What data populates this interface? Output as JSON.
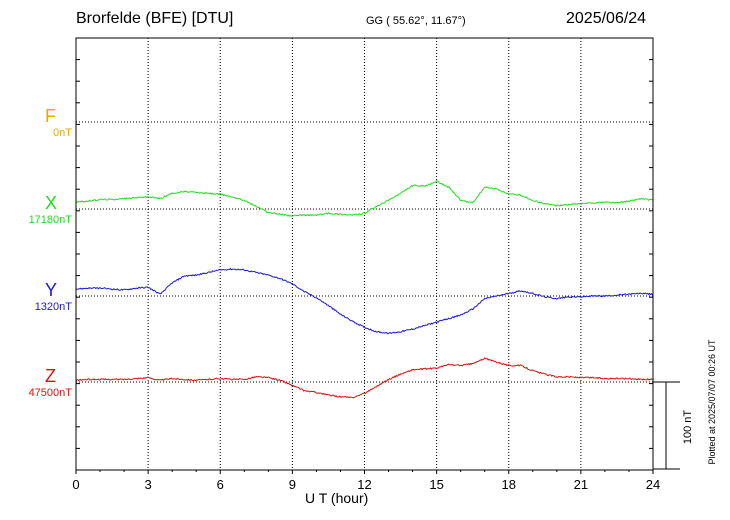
{
  "header": {
    "station": "Brorfelde (BFE)  [DTU]",
    "coords": "GG ( 55.62°,  11.67°)",
    "date": "2025/06/24"
  },
  "footer": {
    "plotted": "Plotted at 2025/07/07 00:26 UT"
  },
  "colors": {
    "F": "#f0a500",
    "X": "#22dd22",
    "Y": "#1a1ad8",
    "Z": "#dd1111",
    "grid": "#000000"
  },
  "chart_data": {
    "type": "line",
    "xlabel": "U T (hour)",
    "xlim": [
      0,
      24
    ],
    "x_ticks": [
      0,
      3,
      6,
      9,
      12,
      15,
      18,
      21,
      24
    ],
    "scale_bar_label": "100 nT",
    "scale_bar_nT": 100,
    "series": [
      {
        "name": "F",
        "baseline_label": "0nT",
        "baseline": 0,
        "points": []
      },
      {
        "name": "X",
        "baseline_label": "17180nT",
        "baseline": 17180,
        "points": [
          [
            0,
            17188
          ],
          [
            0.5,
            17189
          ],
          [
            1,
            17191
          ],
          [
            1.5,
            17191
          ],
          [
            2,
            17192
          ],
          [
            2.5,
            17193
          ],
          [
            3,
            17194
          ],
          [
            3.5,
            17192
          ],
          [
            4,
            17198
          ],
          [
            4.5,
            17200
          ],
          [
            5,
            17199
          ],
          [
            5.5,
            17198
          ],
          [
            6,
            17197
          ],
          [
            6.5,
            17194
          ],
          [
            7,
            17190
          ],
          [
            7.5,
            17183
          ],
          [
            8,
            17176
          ],
          [
            8.5,
            17174
          ],
          [
            9,
            17172
          ],
          [
            9.5,
            17173
          ],
          [
            10,
            17173
          ],
          [
            10.5,
            17175
          ],
          [
            11,
            17174
          ],
          [
            11.5,
            17173
          ],
          [
            12,
            17175
          ],
          [
            12.5,
            17183
          ],
          [
            13,
            17190
          ],
          [
            13.5,
            17198
          ],
          [
            14,
            17207
          ],
          [
            14.5,
            17206
          ],
          [
            15,
            17212
          ],
          [
            15.5,
            17205
          ],
          [
            16,
            17190
          ],
          [
            16.5,
            17187
          ],
          [
            17,
            17205
          ],
          [
            17.5,
            17203
          ],
          [
            18,
            17197
          ],
          [
            18.5,
            17196
          ],
          [
            19,
            17190
          ],
          [
            19.5,
            17186
          ],
          [
            20,
            17184
          ],
          [
            20.5,
            17185
          ],
          [
            21,
            17186
          ],
          [
            21.5,
            17187
          ],
          [
            22,
            17188
          ],
          [
            22.5,
            17187
          ],
          [
            23,
            17189
          ],
          [
            23.5,
            17192
          ],
          [
            24,
            17190
          ]
        ]
      },
      {
        "name": "Y",
        "baseline_label": "1320nT",
        "baseline": 1320,
        "points": [
          [
            0,
            1328
          ],
          [
            0.5,
            1329
          ],
          [
            1,
            1329
          ],
          [
            1.5,
            1328
          ],
          [
            2,
            1327
          ],
          [
            2.5,
            1329
          ],
          [
            3,
            1330
          ],
          [
            3.5,
            1322
          ],
          [
            4,
            1335
          ],
          [
            4.5,
            1343
          ],
          [
            5,
            1344
          ],
          [
            5.5,
            1347
          ],
          [
            6,
            1350
          ],
          [
            6.5,
            1351
          ],
          [
            7,
            1350
          ],
          [
            7.5,
            1347
          ],
          [
            8,
            1344
          ],
          [
            8.5,
            1340
          ],
          [
            9,
            1334
          ],
          [
            9.5,
            1325
          ],
          [
            10,
            1318
          ],
          [
            10.5,
            1309
          ],
          [
            11,
            1299
          ],
          [
            11.5,
            1291
          ],
          [
            12,
            1284
          ],
          [
            12.5,
            1279
          ],
          [
            13,
            1277
          ],
          [
            13.5,
            1279
          ],
          [
            14,
            1282
          ],
          [
            14.5,
            1286
          ],
          [
            15,
            1290
          ],
          [
            15.5,
            1294
          ],
          [
            16,
            1298
          ],
          [
            16.5,
            1305
          ],
          [
            17,
            1317
          ],
          [
            17.5,
            1320
          ],
          [
            18,
            1323
          ],
          [
            18.5,
            1326
          ],
          [
            19,
            1323
          ],
          [
            19.5,
            1319
          ],
          [
            20,
            1317
          ],
          [
            20.5,
            1319
          ],
          [
            21,
            1319
          ],
          [
            21.5,
            1320
          ],
          [
            22,
            1320
          ],
          [
            22.5,
            1321
          ],
          [
            23,
            1322
          ],
          [
            23.5,
            1323
          ],
          [
            24,
            1322
          ]
        ]
      },
      {
        "name": "Z",
        "baseline_label": "47500nT",
        "baseline": 47500,
        "points": [
          [
            0,
            47502
          ],
          [
            0.5,
            47503
          ],
          [
            1,
            47503
          ],
          [
            1.5,
            47503
          ],
          [
            2,
            47503
          ],
          [
            2.5,
            47504
          ],
          [
            3,
            47505
          ],
          [
            3.5,
            47502
          ],
          [
            4,
            47504
          ],
          [
            4.5,
            47503
          ],
          [
            5,
            47502
          ],
          [
            5.5,
            47503
          ],
          [
            6,
            47504
          ],
          [
            6.5,
            47503
          ],
          [
            7,
            47503
          ],
          [
            7.5,
            47506
          ],
          [
            8,
            47505
          ],
          [
            8.5,
            47502
          ],
          [
            9,
            47496
          ],
          [
            9.5,
            47490
          ],
          [
            10,
            47488
          ],
          [
            10.5,
            47485
          ],
          [
            11,
            47483
          ],
          [
            11.5,
            47482
          ],
          [
            12,
            47487
          ],
          [
            12.5,
            47495
          ],
          [
            13,
            47503
          ],
          [
            13.5,
            47509
          ],
          [
            14,
            47514
          ],
          [
            14.5,
            47515
          ],
          [
            15,
            47516
          ],
          [
            15.5,
            47520
          ],
          [
            16,
            47519
          ],
          [
            16.5,
            47521
          ],
          [
            17,
            47527
          ],
          [
            17.5,
            47523
          ],
          [
            18,
            47519
          ],
          [
            18.5,
            47519
          ],
          [
            19,
            47513
          ],
          [
            19.5,
            47509
          ],
          [
            20,
            47506
          ],
          [
            20.5,
            47506
          ],
          [
            21,
            47505
          ],
          [
            21.5,
            47505
          ],
          [
            22,
            47504
          ],
          [
            22.5,
            47504
          ],
          [
            23,
            47504
          ],
          [
            23.5,
            47503
          ],
          [
            24,
            47503
          ]
        ]
      }
    ]
  }
}
